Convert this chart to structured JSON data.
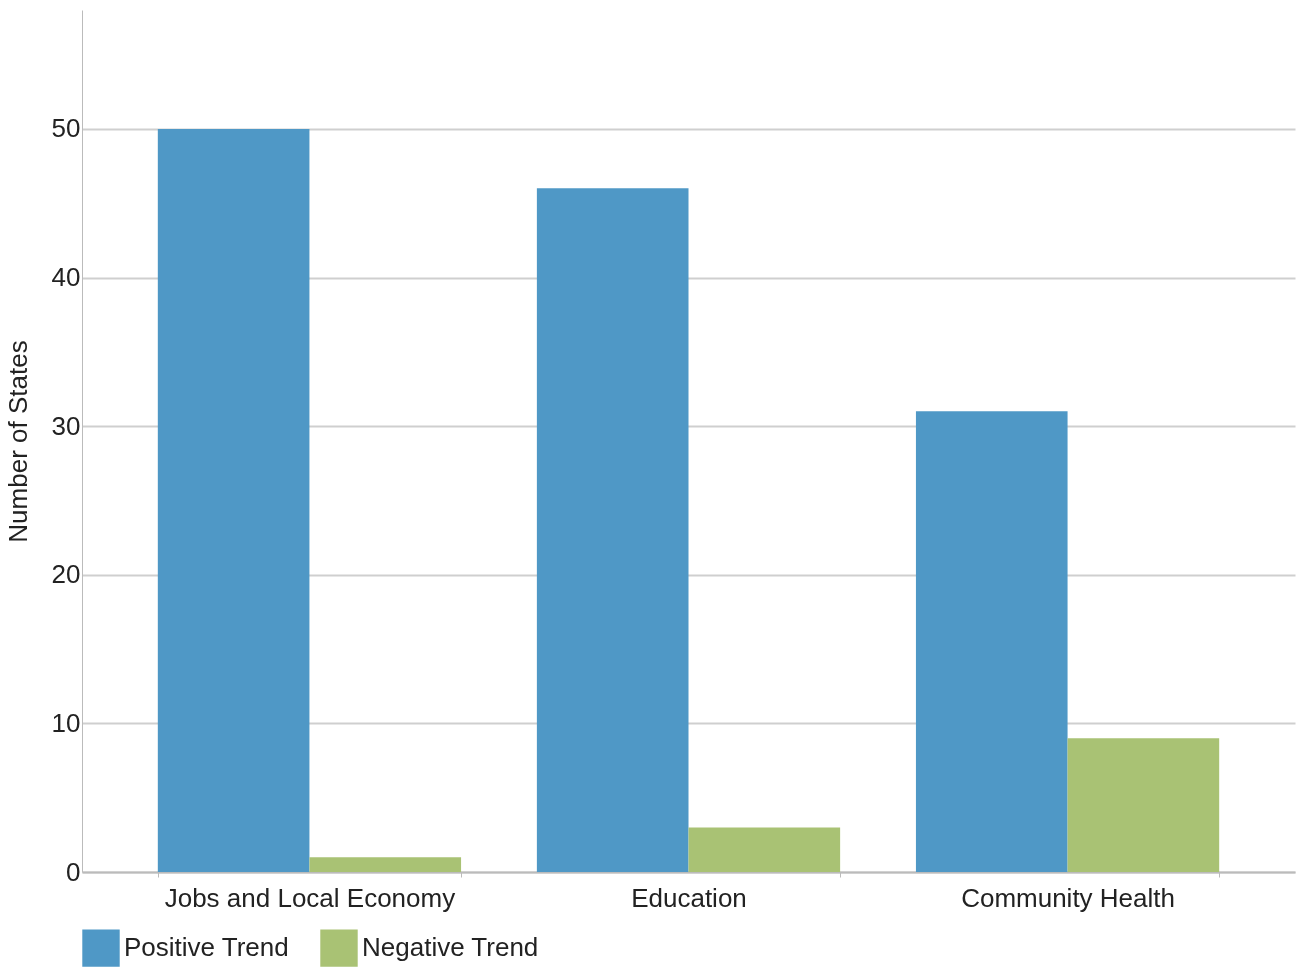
{
  "chart_data": {
    "type": "bar",
    "ylabel": "Number of States",
    "categories": [
      "Jobs and Local Economy",
      "Education",
      "Community Health"
    ],
    "series": [
      {
        "name": "Positive Trend",
        "color": "#4f98c6",
        "values": [
          50,
          46,
          31
        ]
      },
      {
        "name": "Negative Trend",
        "color": "#a9c274",
        "values": [
          1,
          3,
          9
        ]
      }
    ],
    "ylim": [
      0,
      58
    ],
    "yticks": [
      0,
      10,
      20,
      30,
      40,
      50
    ],
    "grid": "y",
    "legend": "bottom"
  }
}
